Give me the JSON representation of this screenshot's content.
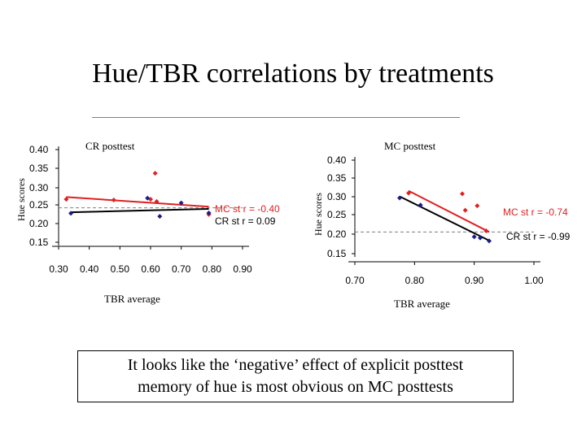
{
  "slide": {
    "title": "Hue/TBR correlations by treatments",
    "note": [
      "It looks like the ‘negative’ effect of explicit posttest",
      "memory of hue is most obvious on MC posttests"
    ]
  },
  "colors": {
    "red": "#e02020",
    "navy": "#1a1a8c",
    "black": "#000000",
    "grey": "#7f7f7f"
  },
  "chart_data": [
    {
      "type": "scatter",
      "title": "CR posttest",
      "xlabel": "TBR average",
      "ylabel": "Hue scores",
      "xlim": [
        0.3,
        0.9
      ],
      "ylim": [
        0.15,
        0.4
      ],
      "xticks": [
        "0.30",
        "0.40",
        "0.50",
        "0.60",
        "0.70",
        "0.80",
        "0.90"
      ],
      "yticks": [
        "0.40",
        "0.35",
        "0.30",
        "0.25",
        "0.20",
        "0.15"
      ],
      "series": [
        {
          "name": "MC",
          "color": "red",
          "points": [
            [
              0.325,
              0.266
            ],
            [
              0.48,
              0.264
            ],
            [
              0.6,
              0.266
            ],
            [
              0.62,
              0.26
            ],
            [
              0.615,
              0.336
            ],
            [
              0.79,
              0.225
            ]
          ],
          "trend": [
            [
              0.325,
              0.272
            ],
            [
              0.79,
              0.246
            ]
          ],
          "corr_label": "MC st r = -0.40"
        },
        {
          "name": "CR",
          "color": "navy",
          "points": [
            [
              0.34,
              0.228
            ],
            [
              0.59,
              0.269
            ],
            [
              0.63,
              0.22
            ],
            [
              0.7,
              0.256
            ],
            [
              0.79,
              0.229
            ]
          ],
          "trend": [
            [
              0.34,
              0.231
            ],
            [
              0.79,
              0.24
            ]
          ],
          "corr_label": "CR st r = 0.09"
        }
      ],
      "baseline_y": 0.243
    },
    {
      "type": "scatter",
      "title": "MC posttest",
      "xlabel": "TBR average",
      "ylabel": "Hue scores",
      "xlim": [
        0.7,
        1.0
      ],
      "ylim": [
        0.15,
        0.4
      ],
      "xticks": [
        "0.70",
        "0.80",
        "0.90",
        "1.00"
      ],
      "yticks": [
        "0.40",
        "0.35",
        "0.30",
        "0.25",
        "0.20",
        "0.15"
      ],
      "series": [
        {
          "name": "MC",
          "color": "red",
          "points": [
            [
              0.79,
              0.312
            ],
            [
              0.88,
              0.31
            ],
            [
              0.885,
              0.266
            ],
            [
              0.905,
              0.278
            ],
            [
              0.92,
              0.211
            ]
          ],
          "trend": [
            [
              0.79,
              0.318
            ],
            [
              0.925,
              0.208
            ]
          ],
          "corr_label": "MC st r = -0.74"
        },
        {
          "name": "CR",
          "color": "navy",
          "points": [
            [
              0.775,
              0.299
            ],
            [
              0.81,
              0.28
            ],
            [
              0.9,
              0.195
            ],
            [
              0.91,
              0.192
            ],
            [
              0.925,
              0.184
            ]
          ],
          "trend": [
            [
              0.775,
              0.303
            ],
            [
              0.925,
              0.185
            ]
          ],
          "corr_label": "CR st r = -0.99"
        }
      ],
      "baseline_y": 0.208
    }
  ]
}
